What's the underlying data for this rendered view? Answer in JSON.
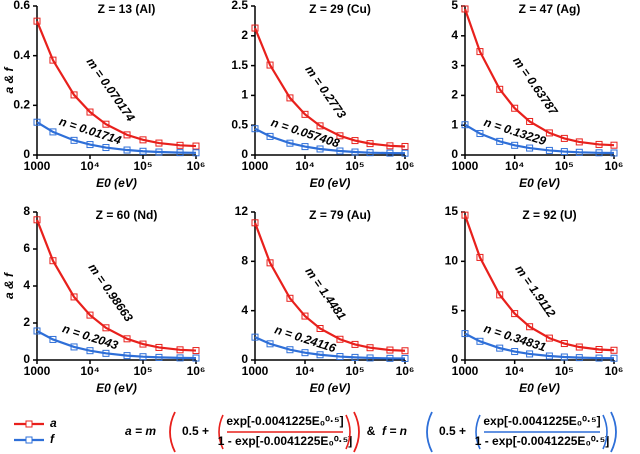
{
  "chart_data": [
    {
      "type": "line",
      "title": "Z = 13 (Al)",
      "xlabel": "E0 (eV)",
      "ylabel": "a & f",
      "xscale": "log",
      "x": [
        1000,
        2000,
        5000,
        10000,
        20000,
        50000,
        100000,
        200000,
        500000,
        1000000
      ],
      "series": [
        {
          "color": "#e8201c",
          "values": [
            0.539,
            0.382,
            0.242,
            0.173,
            0.124,
            0.081,
            0.061,
            0.048,
            0.039,
            0.036
          ]
        },
        {
          "color": "#2e6fd8",
          "values": [
            0.132,
            0.093,
            0.059,
            0.042,
            0.03,
            0.02,
            0.015,
            0.012,
            0.0095,
            0.0089
          ]
        }
      ],
      "annotations": [
        "m = 0.070174",
        "n = 0.01714"
      ],
      "xlim": [
        1000,
        1000000
      ],
      "xticks": [
        1000,
        {
          "value": 10000,
          "label": "10⁴"
        },
        {
          "value": 100000,
          "label": "10⁵"
        },
        {
          "value": 1000000,
          "label": "10⁶"
        }
      ],
      "ylim": [
        0,
        0.6
      ],
      "yticks": [
        0,
        0.2,
        0.4,
        0.6
      ]
    },
    {
      "type": "line",
      "title": "Z = 29 (Cu)",
      "xlabel": "E0 (eV)",
      "xscale": "log",
      "x": [
        1000,
        2000,
        5000,
        10000,
        20000,
        50000,
        100000,
        200000,
        500000,
        1000000
      ],
      "series": [
        {
          "color": "#e8201c",
          "values": [
            2.13,
            1.509,
            0.958,
            0.682,
            0.489,
            0.322,
            0.242,
            0.191,
            0.154,
            0.143
          ]
        },
        {
          "color": "#2e6fd8",
          "values": [
            0.441,
            0.312,
            0.198,
            0.141,
            0.101,
            0.067,
            0.05,
            0.039,
            0.032,
            0.03
          ]
        }
      ],
      "annotations": [
        "m = 0.2773",
        "n = 0.057408"
      ],
      "xlim": [
        1000,
        1000000
      ],
      "xticks": [
        1000,
        {
          "value": 10000,
          "label": "10⁴"
        },
        {
          "value": 100000,
          "label": "10⁵"
        },
        {
          "value": 1000000,
          "label": "10⁶"
        }
      ],
      "ylim": [
        0,
        2.5
      ],
      "yticks": [
        0,
        0.5,
        1,
        1.5,
        2,
        2.5
      ]
    },
    {
      "type": "line",
      "title": "Z = 47 (Ag)",
      "xlabel": "E0 (eV)",
      "xscale": "log",
      "x": [
        1000,
        2000,
        5000,
        10000,
        20000,
        50000,
        100000,
        200000,
        500000,
        1000000
      ],
      "series": [
        {
          "color": "#e8201c",
          "values": [
            4.9,
            3.47,
            2.204,
            1.569,
            1.125,
            0.741,
            0.557,
            0.439,
            0.355,
            0.329
          ]
        },
        {
          "color": "#2e6fd8",
          "values": [
            1.016,
            0.72,
            0.457,
            0.325,
            0.233,
            0.154,
            0.115,
            0.091,
            0.074,
            0.068
          ]
        }
      ],
      "annotations": [
        "m = 0.63787",
        "n = 0.13229"
      ],
      "xlim": [
        1000,
        1000000
      ],
      "xticks": [
        1000,
        {
          "value": 10000,
          "label": "10⁴"
        },
        {
          "value": 100000,
          "label": "10⁵"
        },
        {
          "value": 1000000,
          "label": "10⁶"
        }
      ],
      "ylim": [
        0,
        5
      ],
      "yticks": [
        0,
        1,
        2,
        3,
        4,
        5
      ]
    },
    {
      "type": "line",
      "title": "Z = 60 (Nd)",
      "xlabel": "E0 (eV)",
      "ylabel": "a & f",
      "xscale": "log",
      "x": [
        1000,
        2000,
        5000,
        10000,
        20000,
        50000,
        100000,
        200000,
        500000,
        1000000
      ],
      "series": [
        {
          "color": "#e8201c",
          "values": [
            7.579,
            5.367,
            3.409,
            2.427,
            1.74,
            1.145,
            0.861,
            0.679,
            0.55,
            0.51
          ]
        },
        {
          "color": "#2e6fd8",
          "values": [
            1.569,
            1.111,
            0.706,
            0.503,
            0.36,
            0.237,
            0.178,
            0.141,
            0.114,
            0.106
          ]
        }
      ],
      "annotations": [
        "m = 0.98663",
        "n = 0.2043"
      ],
      "xlim": [
        1000,
        1000000
      ],
      "xticks": [
        1000,
        {
          "value": 10000,
          "label": "10⁴"
        },
        {
          "value": 100000,
          "label": "10⁵"
        },
        {
          "value": 1000000,
          "label": "10⁶"
        }
      ],
      "ylim": [
        0,
        8
      ],
      "yticks": [
        0,
        2,
        4,
        6,
        8
      ]
    },
    {
      "type": "line",
      "title": "Z = 79 (Au)",
      "xlabel": "E0 (eV)",
      "xscale": "log",
      "x": [
        1000,
        2000,
        5000,
        10000,
        20000,
        50000,
        100000,
        200000,
        500000,
        1000000
      ],
      "series": [
        {
          "color": "#e8201c",
          "values": [
            11.124,
            7.878,
            5.003,
            3.562,
            2.554,
            1.681,
            1.264,
            0.996,
            0.807,
            0.748
          ]
        },
        {
          "color": "#2e6fd8",
          "values": [
            1.853,
            1.312,
            0.833,
            0.593,
            0.425,
            0.28,
            0.211,
            0.166,
            0.134,
            0.125
          ]
        }
      ],
      "annotations": [
        "m = 1.4481",
        "n = 0.24116"
      ],
      "xlim": [
        1000,
        1000000
      ],
      "xticks": [
        1000,
        {
          "value": 10000,
          "label": "10⁴"
        },
        {
          "value": 100000,
          "label": "10⁵"
        },
        {
          "value": 1000000,
          "label": "10⁶"
        }
      ],
      "ylim": [
        0,
        12
      ],
      "yticks": [
        0,
        4,
        8,
        12
      ]
    },
    {
      "type": "line",
      "title": "Z = 92 (U)",
      "xlabel": "E0 (eV)",
      "xscale": "log",
      "x": [
        1000,
        2000,
        5000,
        10000,
        20000,
        50000,
        100000,
        200000,
        500000,
        1000000
      ],
      "series": [
        {
          "color": "#e8201c",
          "values": [
            14.682,
            10.397,
            6.603,
            4.702,
            3.371,
            2.219,
            1.668,
            1.315,
            1.065,
            0.987
          ]
        },
        {
          "color": "#2e6fd8",
          "values": [
            2.676,
            1.895,
            1.203,
            0.857,
            0.614,
            0.404,
            0.304,
            0.24,
            0.194,
            0.18
          ]
        }
      ],
      "annotations": [
        "m = 1.9112",
        "n = 0.34831"
      ],
      "xlim": [
        1000,
        1000000
      ],
      "xticks": [
        1000,
        {
          "value": 10000,
          "label": "10⁴"
        },
        {
          "value": 100000,
          "label": "10⁵"
        },
        {
          "value": 1000000,
          "label": "10⁶"
        }
      ],
      "ylim": [
        0,
        15
      ],
      "yticks": [
        0,
        5,
        10,
        15
      ]
    }
  ],
  "legend": [
    {
      "name": "a",
      "color": "#e8201c"
    },
    {
      "name": "f",
      "color": "#2e6fd8"
    }
  ],
  "formulas": [
    {
      "color": "#e8201c",
      "lhs": "a = m",
      "constant": "0.5 +",
      "numerator": "exp[-0.0041225E₀⁰·⁵]",
      "denominator": "1 -  exp[-0.0041225E₀⁰·⁵]"
    },
    {
      "color": "#2e6fd8",
      "lhs": "f = n",
      "constant": "0.5 +",
      "numerator": "exp[-0.0041225E₀⁰·⁵]",
      "denominator": "1 -  exp[-0.0041225E₀⁰·⁵]"
    }
  ],
  "connector": "&"
}
